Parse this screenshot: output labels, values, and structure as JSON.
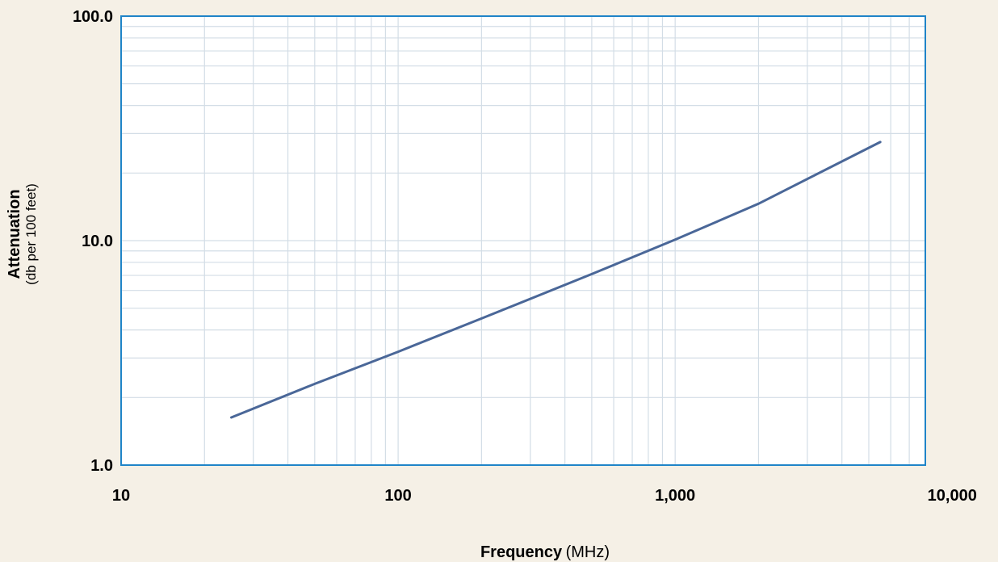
{
  "chart_data": {
    "type": "line",
    "x_scale": "log",
    "y_scale": "log",
    "xlim": [
      10,
      8000
    ],
    "ylim": [
      1,
      100
    ],
    "x_ticks": [
      {
        "value": 10,
        "label": "10"
      },
      {
        "value": 100,
        "label": "100"
      },
      {
        "value": 1000,
        "label": "1,000"
      },
      {
        "value": 10000,
        "label": "10,000"
      }
    ],
    "y_ticks": [
      {
        "value": 100,
        "label": "100.0"
      },
      {
        "value": 10,
        "label": "10.0"
      },
      {
        "value": 1,
        "label": "1.0"
      }
    ],
    "xlabel_bold": "Frequency",
    "xlabel_unit": "(MHz)",
    "ylabel_bold": "Attenuation",
    "ylabel_unit": "(db per 100 feet)",
    "grid": true,
    "colors": {
      "line": "#4a6798",
      "frame": "#1f84c8",
      "grid": "#d3dde6",
      "plot_bg": "#ffffff"
    },
    "series": [
      {
        "x": [
          25,
          50,
          100,
          200,
          500,
          1000,
          2000,
          5500
        ],
        "y": [
          1.63,
          2.3,
          3.2,
          4.5,
          7.1,
          10.1,
          14.6,
          27.5
        ]
      }
    ]
  }
}
